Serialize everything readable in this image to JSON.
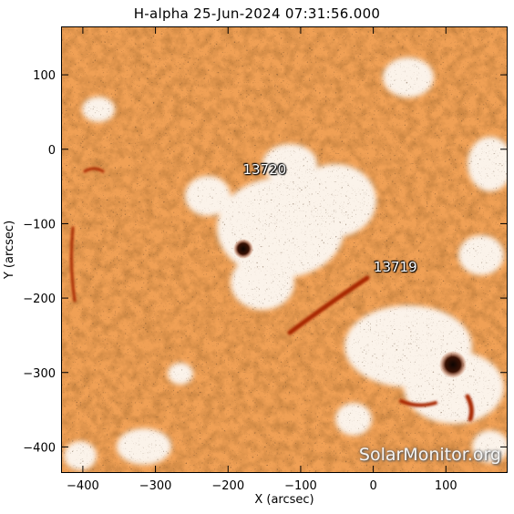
{
  "title": "H-alpha 25-Jun-2024 07:31:56.000",
  "xaxis": {
    "label": "X (arcsec)",
    "range": [
      -430,
      185
    ],
    "ticks": [
      -400,
      -300,
      -200,
      -100,
      0,
      100
    ],
    "tick_labels": [
      "−400",
      "−300",
      "−200",
      "−100",
      "0",
      "100"
    ]
  },
  "yaxis": {
    "label": "Y (arcsec)",
    "range": [
      -435,
      165
    ],
    "ticks": [
      100,
      0,
      -100,
      -200,
      -300,
      -400
    ],
    "tick_labels": [
      "100",
      "0",
      "−100",
      "−200",
      "−300",
      "−400"
    ]
  },
  "regions": [
    {
      "label": "13720",
      "x": -152,
      "y": -28
    },
    {
      "label": "13719",
      "x": 28,
      "y": -160
    }
  ],
  "watermark": "SolarMonitor.org",
  "colors": {
    "background": "#f2a35a",
    "bright_plage": "#ffffff",
    "dark_feature": "#a02200",
    "sunspot": "#1a0a05"
  }
}
